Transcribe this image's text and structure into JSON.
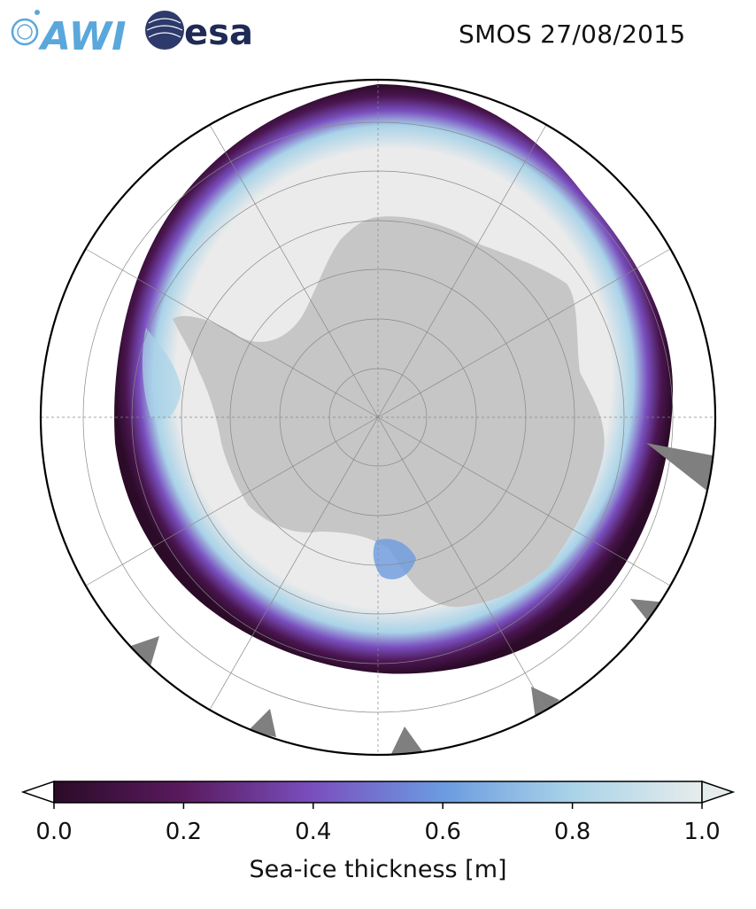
{
  "header": {
    "logo_left_text": "AWI",
    "logo_right_text": "esa",
    "title": "SMOS 27/08/2015"
  },
  "map": {
    "projection": "south-polar-stereographic",
    "colors": {
      "land": "#c6c6c6",
      "ice_thick": "#ebebeb",
      "ocean": "#ffffff",
      "coast_rock": "#7f7f7f",
      "graticule": "#888888"
    }
  },
  "colorbar": {
    "label": "Sea-ice thickness [m]",
    "ticks": [
      "0.0",
      "0.2",
      "0.4",
      "0.6",
      "0.8",
      "1.0"
    ],
    "tick_values": [
      0.0,
      0.2,
      0.4,
      0.6,
      0.8,
      1.0
    ],
    "range": [
      0.0,
      1.0
    ],
    "extend": "both",
    "colormap_stops": [
      "#2b0b28",
      "#5a1a5e",
      "#7a4fbf",
      "#6b9be0",
      "#a9d3e8",
      "#e6ecec"
    ]
  }
}
